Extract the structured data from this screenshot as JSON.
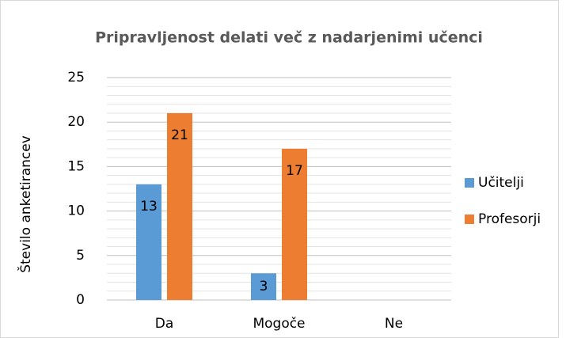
{
  "chart_data": {
    "type": "bar",
    "title": "Pripravljenost delati več z nadarjenimi učenci",
    "y_label": "Število anketirancev",
    "categories": [
      "Da",
      "Mogoče",
      "Ne"
    ],
    "series": [
      {
        "name": "Učitelji",
        "color": "#5b9bd5",
        "values": [
          13,
          3,
          null
        ]
      },
      {
        "name": "Profesorji",
        "color": "#ed7d31",
        "values": [
          21,
          17,
          null
        ]
      }
    ],
    "ylim": [
      0,
      25
    ],
    "yticks": [
      0,
      5,
      10,
      15,
      20,
      25
    ],
    "minor_yticks": [
      1,
      2,
      3,
      4,
      6,
      7,
      8,
      9,
      11,
      12,
      13,
      14,
      16,
      17,
      18,
      19,
      21,
      22,
      23,
      24
    ],
    "grid": true,
    "legend": "right"
  }
}
